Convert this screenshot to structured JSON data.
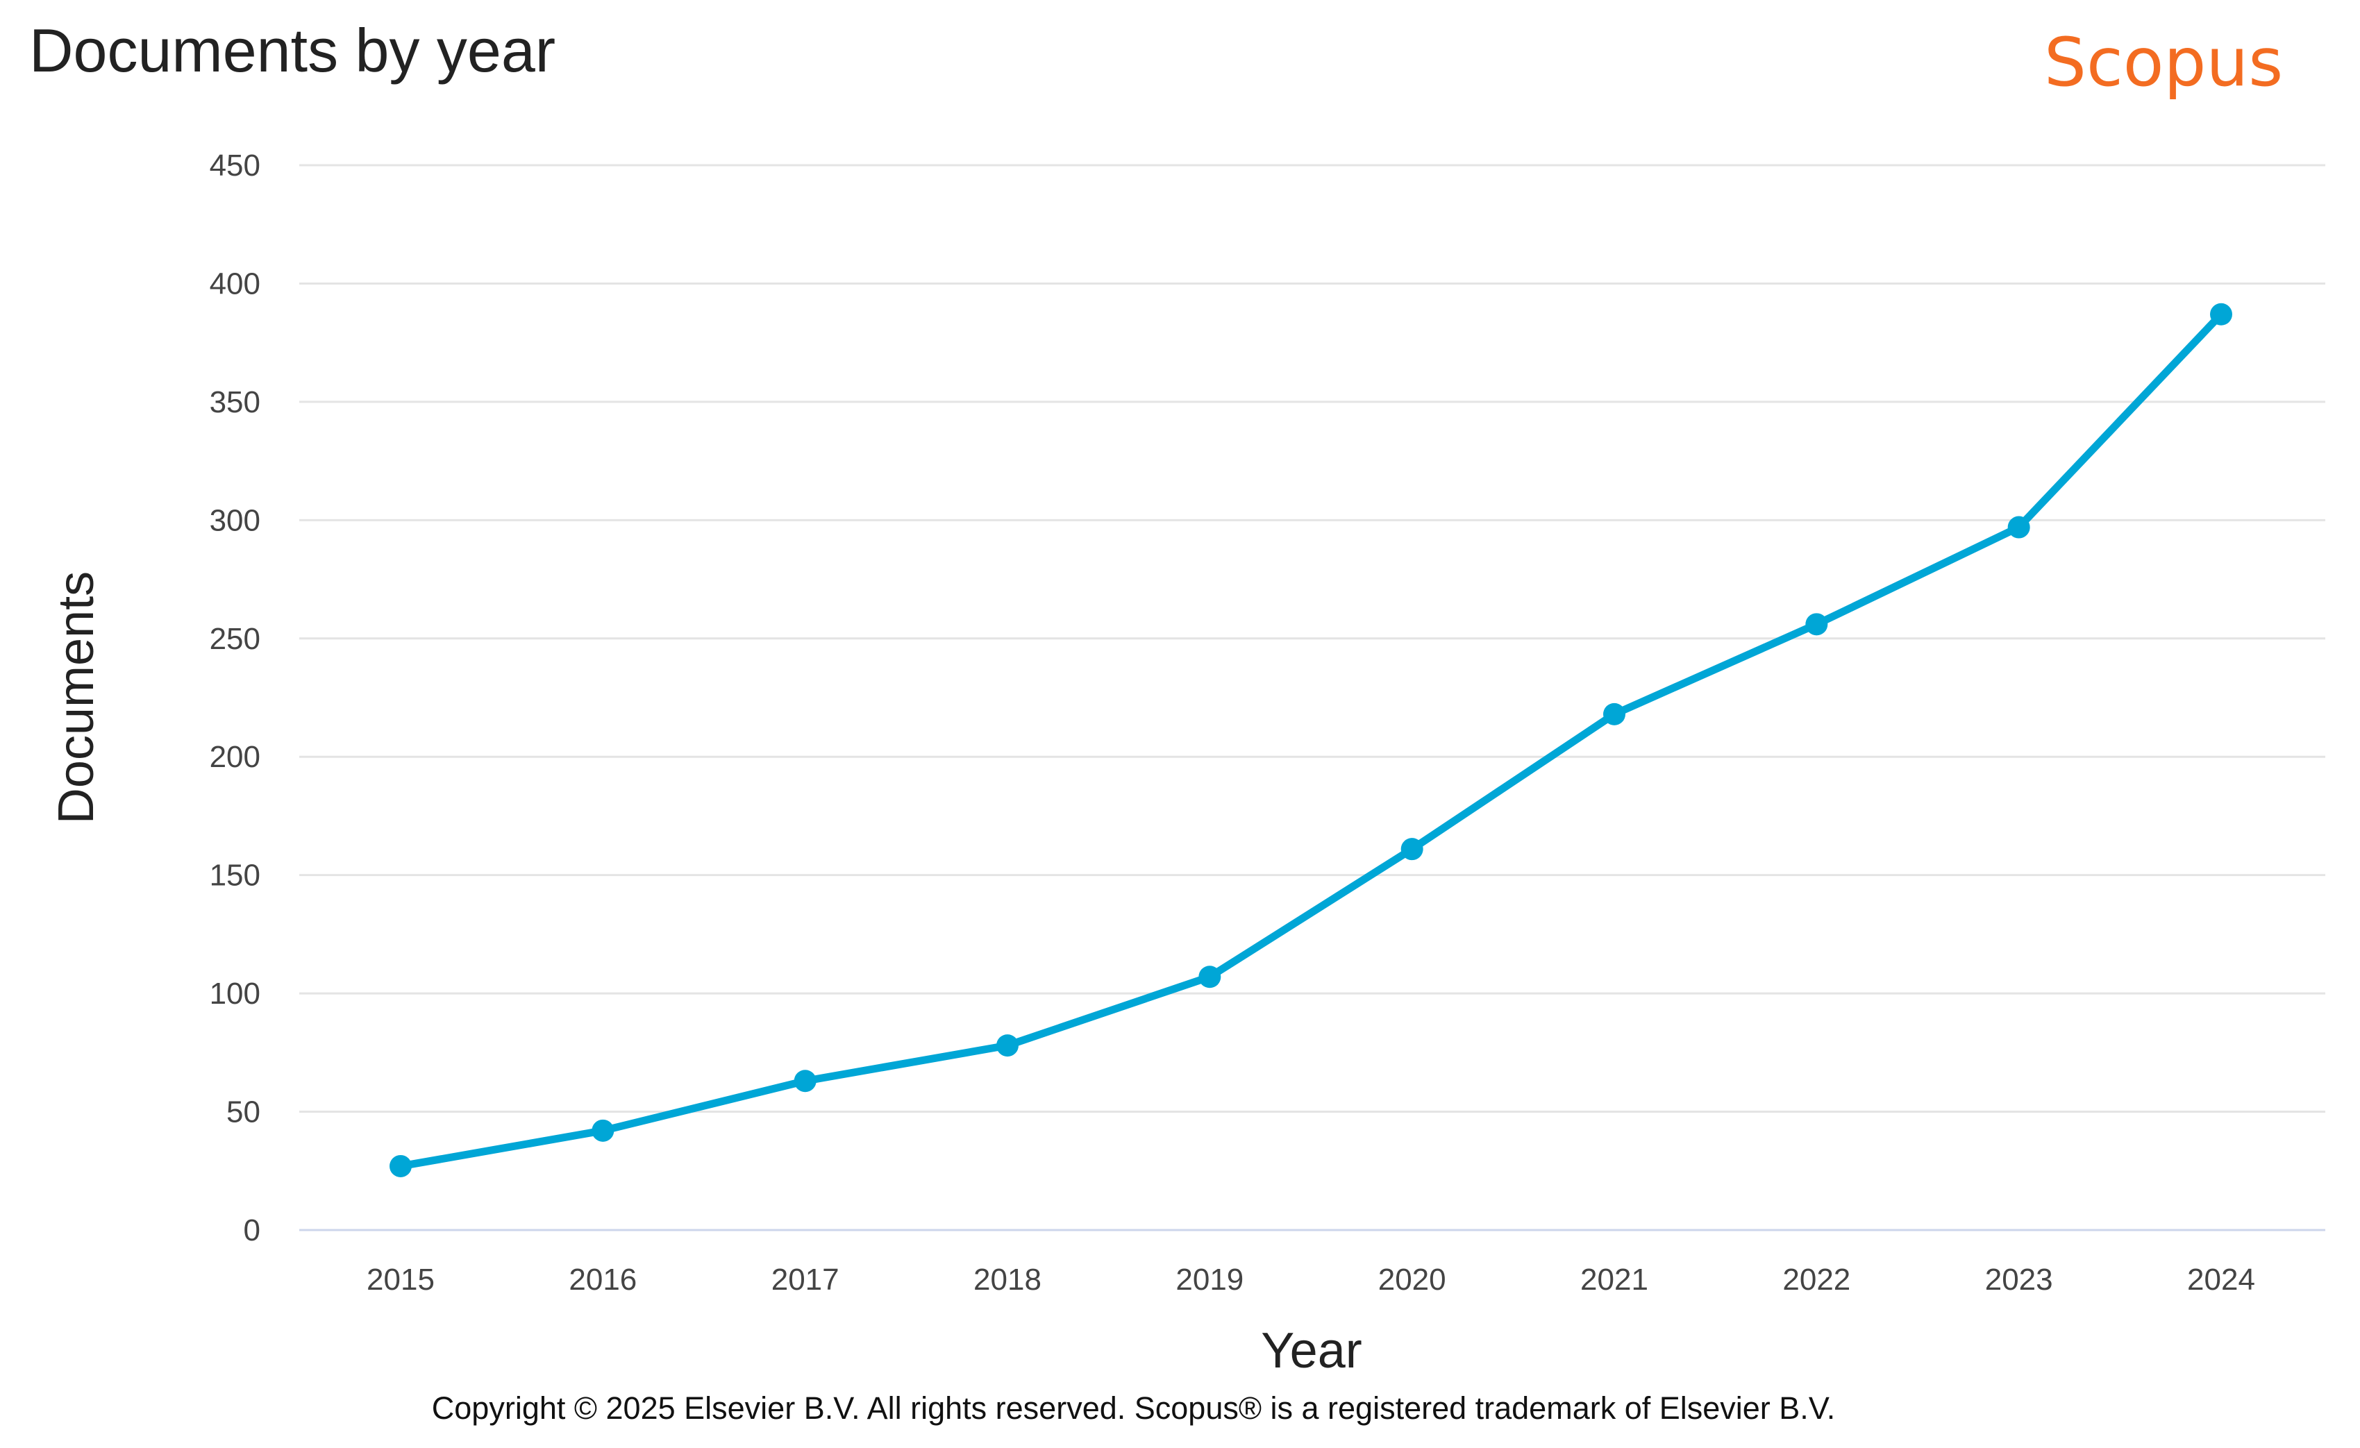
{
  "header": {
    "title": "Documents by year",
    "brand": "Scopus"
  },
  "footer": {
    "copyright": "Copyright © 2025 Elsevier B.V. All rights reserved. Scopus® is a registered trademark of Elsevier B.V."
  },
  "chart_data": {
    "type": "line",
    "title": "Documents by year",
    "xlabel": "Year",
    "ylabel": "Documents",
    "x": [
      "2015",
      "2016",
      "2017",
      "2018",
      "2019",
      "2020",
      "2021",
      "2022",
      "2023",
      "2024"
    ],
    "values": [
      27,
      42,
      63,
      78,
      107,
      161,
      218,
      256,
      297,
      387
    ],
    "ylim": [
      0,
      450
    ],
    "yticks": [
      0,
      50,
      100,
      150,
      200,
      250,
      300,
      350,
      400,
      450
    ],
    "grid": true,
    "legend": "none",
    "colors": {
      "line": "#00a6d6",
      "grid": "#e4e4e4",
      "axis": "#ccd6eb",
      "brand": "#f36c21"
    }
  }
}
